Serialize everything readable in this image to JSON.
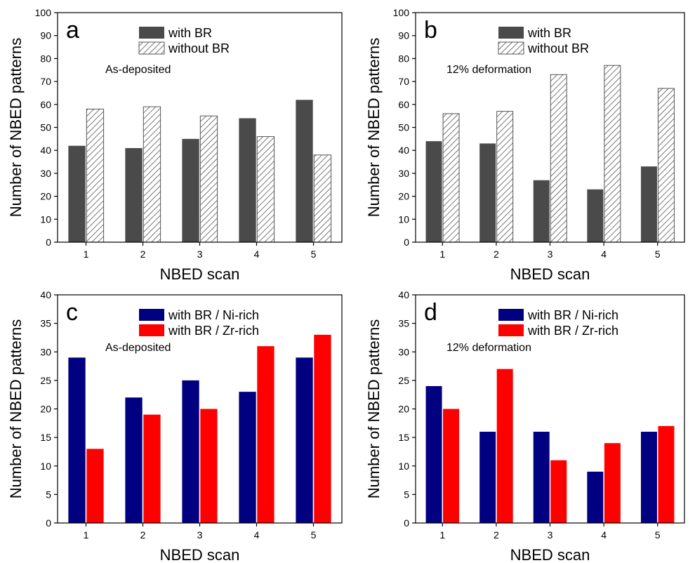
{
  "chart_data": [
    {
      "type": "bar",
      "panel_label": "a",
      "annotation": "As-deposited",
      "categories": [
        "1",
        "2",
        "3",
        "4",
        "5"
      ],
      "series": [
        {
          "name": "with BR",
          "values": [
            42,
            41,
            45,
            54,
            62
          ],
          "color": "#4a4a4a",
          "fill": "solid"
        },
        {
          "name": "without BR",
          "values": [
            58,
            59,
            55,
            46,
            38
          ],
          "color": "#555555",
          "fill": "hatched"
        }
      ],
      "xlabel": "NBED scan",
      "ylabel": "Number of NBED patterns",
      "ylim": [
        0,
        100
      ],
      "yticks": [
        0,
        10,
        20,
        30,
        40,
        50,
        60,
        70,
        80,
        90,
        100
      ],
      "legend": "top-center",
      "grid": false
    },
    {
      "type": "bar",
      "panel_label": "b",
      "annotation": "12% deformation",
      "categories": [
        "1",
        "2",
        "3",
        "4",
        "5"
      ],
      "series": [
        {
          "name": "with BR",
          "values": [
            44,
            43,
            27,
            23,
            33
          ],
          "color": "#4a4a4a",
          "fill": "solid"
        },
        {
          "name": "without BR",
          "values": [
            56,
            57,
            73,
            77,
            67
          ],
          "color": "#555555",
          "fill": "hatched"
        }
      ],
      "xlabel": "NBED scan",
      "ylabel": "Number of NBED patterns",
      "ylim": [
        0,
        100
      ],
      "yticks": [
        0,
        10,
        20,
        30,
        40,
        50,
        60,
        70,
        80,
        90,
        100
      ],
      "legend": "top-center",
      "grid": false
    },
    {
      "type": "bar",
      "panel_label": "c",
      "annotation": "As-deposited",
      "categories": [
        "1",
        "2",
        "3",
        "4",
        "5"
      ],
      "series": [
        {
          "name": "with BR / Ni-rich",
          "values": [
            29,
            22,
            25,
            23,
            29
          ],
          "color": "#000080",
          "fill": "solid"
        },
        {
          "name": "with BR / Zr-rich",
          "values": [
            13,
            19,
            20,
            31,
            33
          ],
          "color": "#ff0000",
          "fill": "solid"
        }
      ],
      "xlabel": "NBED scan",
      "ylabel": "Number of NBED patterns",
      "ylim": [
        0,
        40
      ],
      "yticks": [
        0,
        5,
        10,
        15,
        20,
        25,
        30,
        35,
        40
      ],
      "legend": "top-center",
      "grid": false
    },
    {
      "type": "bar",
      "panel_label": "d",
      "annotation": "12% deformation",
      "categories": [
        "1",
        "2",
        "3",
        "4",
        "5"
      ],
      "series": [
        {
          "name": "with BR / Ni-rich",
          "values": [
            24,
            16,
            16,
            9,
            16
          ],
          "color": "#000080",
          "fill": "solid"
        },
        {
          "name": "with BR / Zr-rich",
          "values": [
            20,
            27,
            11,
            14,
            17
          ],
          "color": "#ff0000",
          "fill": "solid"
        }
      ],
      "xlabel": "NBED scan",
      "ylabel": "Number of NBED patterns",
      "ylim": [
        0,
        40
      ],
      "yticks": [
        0,
        5,
        10,
        15,
        20,
        25,
        30,
        35,
        40
      ],
      "legend": "top-center",
      "grid": false
    }
  ]
}
